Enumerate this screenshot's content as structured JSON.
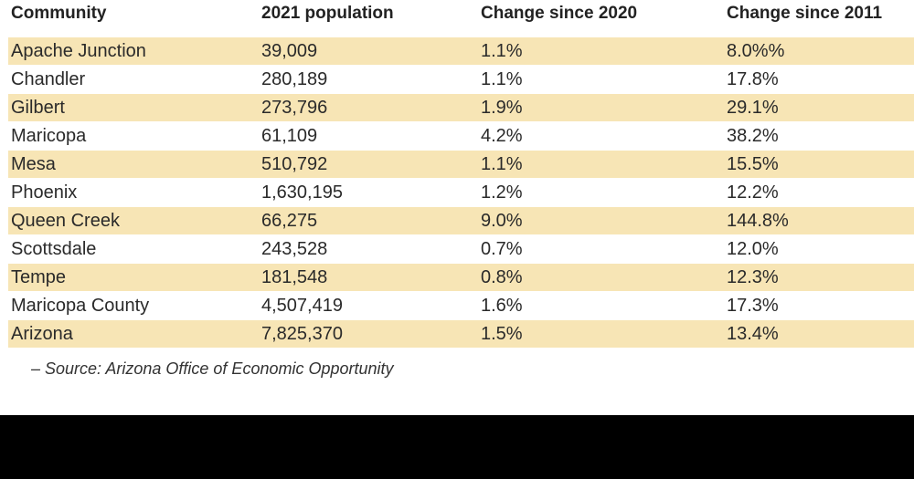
{
  "table": {
    "headers": [
      "Community",
      "2021 population",
      "Change since 2020",
      "Change since 2011"
    ],
    "rows": [
      [
        "Apache Junction",
        "39,009",
        "1.1%",
        "8.0%%"
      ],
      [
        "Chandler",
        "280,189",
        "1.1%",
        "17.8%"
      ],
      [
        "Gilbert",
        "273,796",
        "1.9%",
        "29.1%"
      ],
      [
        "Maricopa",
        "61,109",
        "4.2%",
        "38.2%"
      ],
      [
        "Mesa",
        "510,792",
        "1.1%",
        "15.5%"
      ],
      [
        "Phoenix",
        "1,630,195",
        "1.2%",
        "12.2%"
      ],
      [
        "Queen Creek",
        " 66,275",
        "9.0%",
        "144.8%"
      ],
      [
        "Scottsdale",
        "243,528",
        "0.7%",
        "12.0%"
      ],
      [
        "Tempe",
        "181,548",
        "0.8%",
        "12.3%"
      ],
      [
        "Maricopa County",
        "4,507,419",
        "1.6%",
        "17.3%"
      ],
      [
        "Arizona",
        "7,825,370",
        "1.5%",
        "13.4%"
      ]
    ],
    "highlight_color": "#f7e5b5"
  },
  "source": "– Source: Arizona Office of Economic Opportunity"
}
